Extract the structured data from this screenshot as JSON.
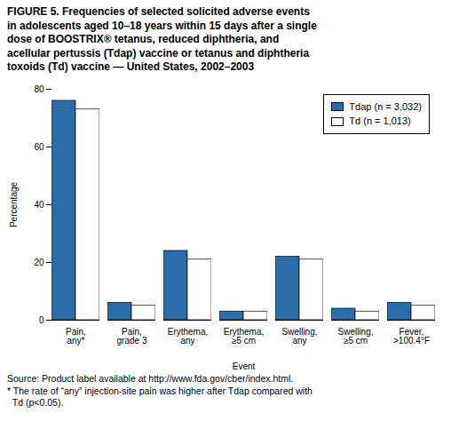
{
  "chart_data": {
    "type": "bar",
    "title": "FIGURE 5. Frequencies of selected solicited adverse events\nin adolescents aged 10–18 years within 15 days after a single\ndose of BOOSTRIX® tetanus, reduced diphtheria, and\nacellular pertussis (Tdap) vaccine or tetanus and diphtheria\ntoxoids (Td) vaccine — United States, 2002–2003",
    "xlabel": "Event",
    "ylabel": "Percentage",
    "categories": [
      "Pain,\nany*",
      "Pain,\ngrade 3",
      "Erythema,\nany",
      "Erythema,\n≥5 cm",
      "Swelling,\nany",
      "Swelling,\n≥5 cm",
      "Fever,\n>100.4°F"
    ],
    "series": [
      {
        "name": "Tdap (n = 3,032)",
        "color": "#2b6da8",
        "values": [
          76,
          6,
          24,
          3,
          22,
          4,
          6
        ]
      },
      {
        "name": "Td (n = 1,013)",
        "color": "#ffffff",
        "values": [
          73,
          5,
          21,
          3,
          21,
          3,
          5
        ]
      }
    ],
    "ylim": [
      0,
      80
    ],
    "yticks": [
      0,
      20,
      40,
      60,
      80
    ],
    "grid": false,
    "legend": "upper right",
    "annotations": [
      "Source: Product label available at http://www.fda.gov/cber/index.html.",
      "* The rate of “any” injection-site pain was higher after Tdap compared with\n  Td (p<0.05)."
    ]
  }
}
